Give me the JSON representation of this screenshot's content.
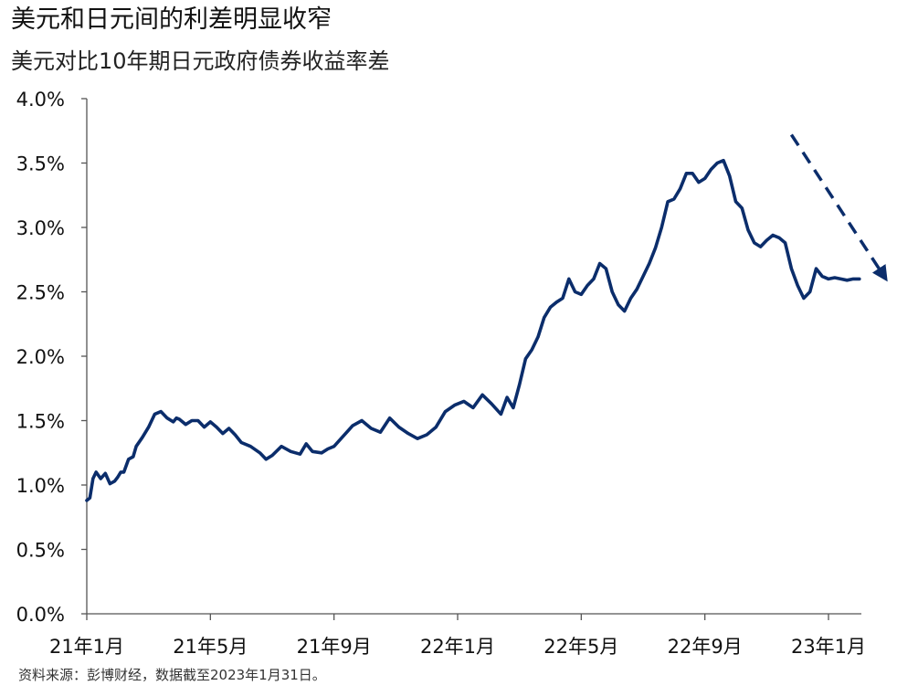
{
  "header": {
    "title": "美元和日元间的利差明显收窄",
    "subtitle": "美元对比10年期日元政府债券收益率差"
  },
  "footer": {
    "source": "资料来源：彭博财经，数据截至2023年1月31日。"
  },
  "chart_data": {
    "type": "line",
    "title": "美元和日元间的利差明显收窄",
    "subtitle": "美元对比10年期日元政府债券收益率差",
    "xlabel": "",
    "ylabel": "",
    "xlim": [
      0,
      25
    ],
    "ylim": [
      0,
      4.0
    ],
    "yticks": [
      {
        "value": 0.0,
        "label": "0.0%"
      },
      {
        "value": 0.5,
        "label": "0.5%"
      },
      {
        "value": 1.0,
        "label": "1.0%"
      },
      {
        "value": 1.5,
        "label": "1.5%"
      },
      {
        "value": 2.0,
        "label": "2.0%"
      },
      {
        "value": 2.5,
        "label": "2.5%"
      },
      {
        "value": 3.0,
        "label": "3.0%"
      },
      {
        "value": 3.5,
        "label": "3.5%"
      },
      {
        "value": 4.0,
        "label": "4.0%"
      }
    ],
    "xticks": [
      {
        "value": 0,
        "label": "21年1月"
      },
      {
        "value": 4,
        "label": "21年5月"
      },
      {
        "value": 8,
        "label": "21年9月"
      },
      {
        "value": 12,
        "label": "22年1月"
      },
      {
        "value": 16,
        "label": "22年5月"
      },
      {
        "value": 20,
        "label": "22年9月"
      },
      {
        "value": 24,
        "label": "23年1月"
      }
    ],
    "grid": false,
    "line_color": "#0b2d6b",
    "series": [
      {
        "x": [
          0.0,
          0.1,
          0.2,
          0.3,
          0.45,
          0.6,
          0.75,
          0.9,
          1.0,
          1.1,
          1.2,
          1.35,
          1.5,
          1.6,
          1.8,
          2.0,
          2.2,
          2.4,
          2.6,
          2.8,
          2.9,
          3.0,
          3.2,
          3.4,
          3.6,
          3.8,
          4.0,
          4.2,
          4.4,
          4.6,
          4.8,
          5.0,
          5.3,
          5.6,
          5.8,
          6.0,
          6.3,
          6.6,
          6.9,
          7.1,
          7.3,
          7.6,
          7.8,
          8.0,
          8.3,
          8.6,
          8.9,
          9.2,
          9.5,
          9.8,
          10.1,
          10.4,
          10.7,
          11.0,
          11.3,
          11.6,
          11.9,
          12.2,
          12.5,
          12.8,
          13.1,
          13.4,
          13.6,
          13.8,
          14.0,
          14.2,
          14.4,
          14.6,
          14.8,
          15.0,
          15.2,
          15.4,
          15.6,
          15.8,
          16.0,
          16.2,
          16.4,
          16.6,
          16.8,
          17.0,
          17.2,
          17.4,
          17.6,
          17.8,
          18.0,
          18.2,
          18.4,
          18.6,
          18.8,
          19.0,
          19.2,
          19.4,
          19.6,
          19.8,
          20.0,
          20.2,
          20.4,
          20.6,
          20.8,
          21.0,
          21.2,
          21.4,
          21.6,
          21.8,
          22.0,
          22.2,
          22.4,
          22.6,
          22.8,
          23.0,
          23.2,
          23.4,
          23.6,
          23.8,
          24.0,
          24.2,
          24.4,
          24.6,
          24.8,
          25.0
        ],
        "values": [
          0.88,
          0.9,
          1.05,
          1.1,
          1.05,
          1.09,
          1.01,
          1.03,
          1.06,
          1.1,
          1.1,
          1.2,
          1.22,
          1.3,
          1.37,
          1.45,
          1.55,
          1.57,
          1.52,
          1.49,
          1.52,
          1.51,
          1.47,
          1.5,
          1.5,
          1.45,
          1.49,
          1.45,
          1.4,
          1.44,
          1.39,
          1.33,
          1.3,
          1.25,
          1.2,
          1.23,
          1.3,
          1.26,
          1.24,
          1.32,
          1.26,
          1.25,
          1.28,
          1.3,
          1.38,
          1.46,
          1.5,
          1.44,
          1.41,
          1.52,
          1.45,
          1.4,
          1.36,
          1.39,
          1.45,
          1.57,
          1.62,
          1.65,
          1.6,
          1.7,
          1.63,
          1.55,
          1.68,
          1.6,
          1.78,
          1.98,
          2.05,
          2.15,
          2.3,
          2.38,
          2.42,
          2.45,
          2.6,
          2.5,
          2.48,
          2.55,
          2.6,
          2.72,
          2.68,
          2.5,
          2.4,
          2.35,
          2.45,
          2.52,
          2.62,
          2.72,
          2.84,
          3.0,
          3.2,
          3.22,
          3.3,
          3.42,
          3.42,
          3.35,
          3.38,
          3.45,
          3.5,
          3.52,
          3.4,
          3.2,
          3.15,
          2.98,
          2.88,
          2.85,
          2.9,
          2.94,
          2.92,
          2.88,
          2.68,
          2.55,
          2.45,
          2.5,
          2.68,
          2.62,
          2.6,
          2.61,
          2.6,
          2.59,
          2.6,
          2.6
        ]
      }
    ],
    "annotations": [
      {
        "type": "dashed-arrow",
        "from": {
          "x": 22.8,
          "y": 3.72
        },
        "to": {
          "x": 25.8,
          "y": 2.62
        }
      }
    ]
  }
}
